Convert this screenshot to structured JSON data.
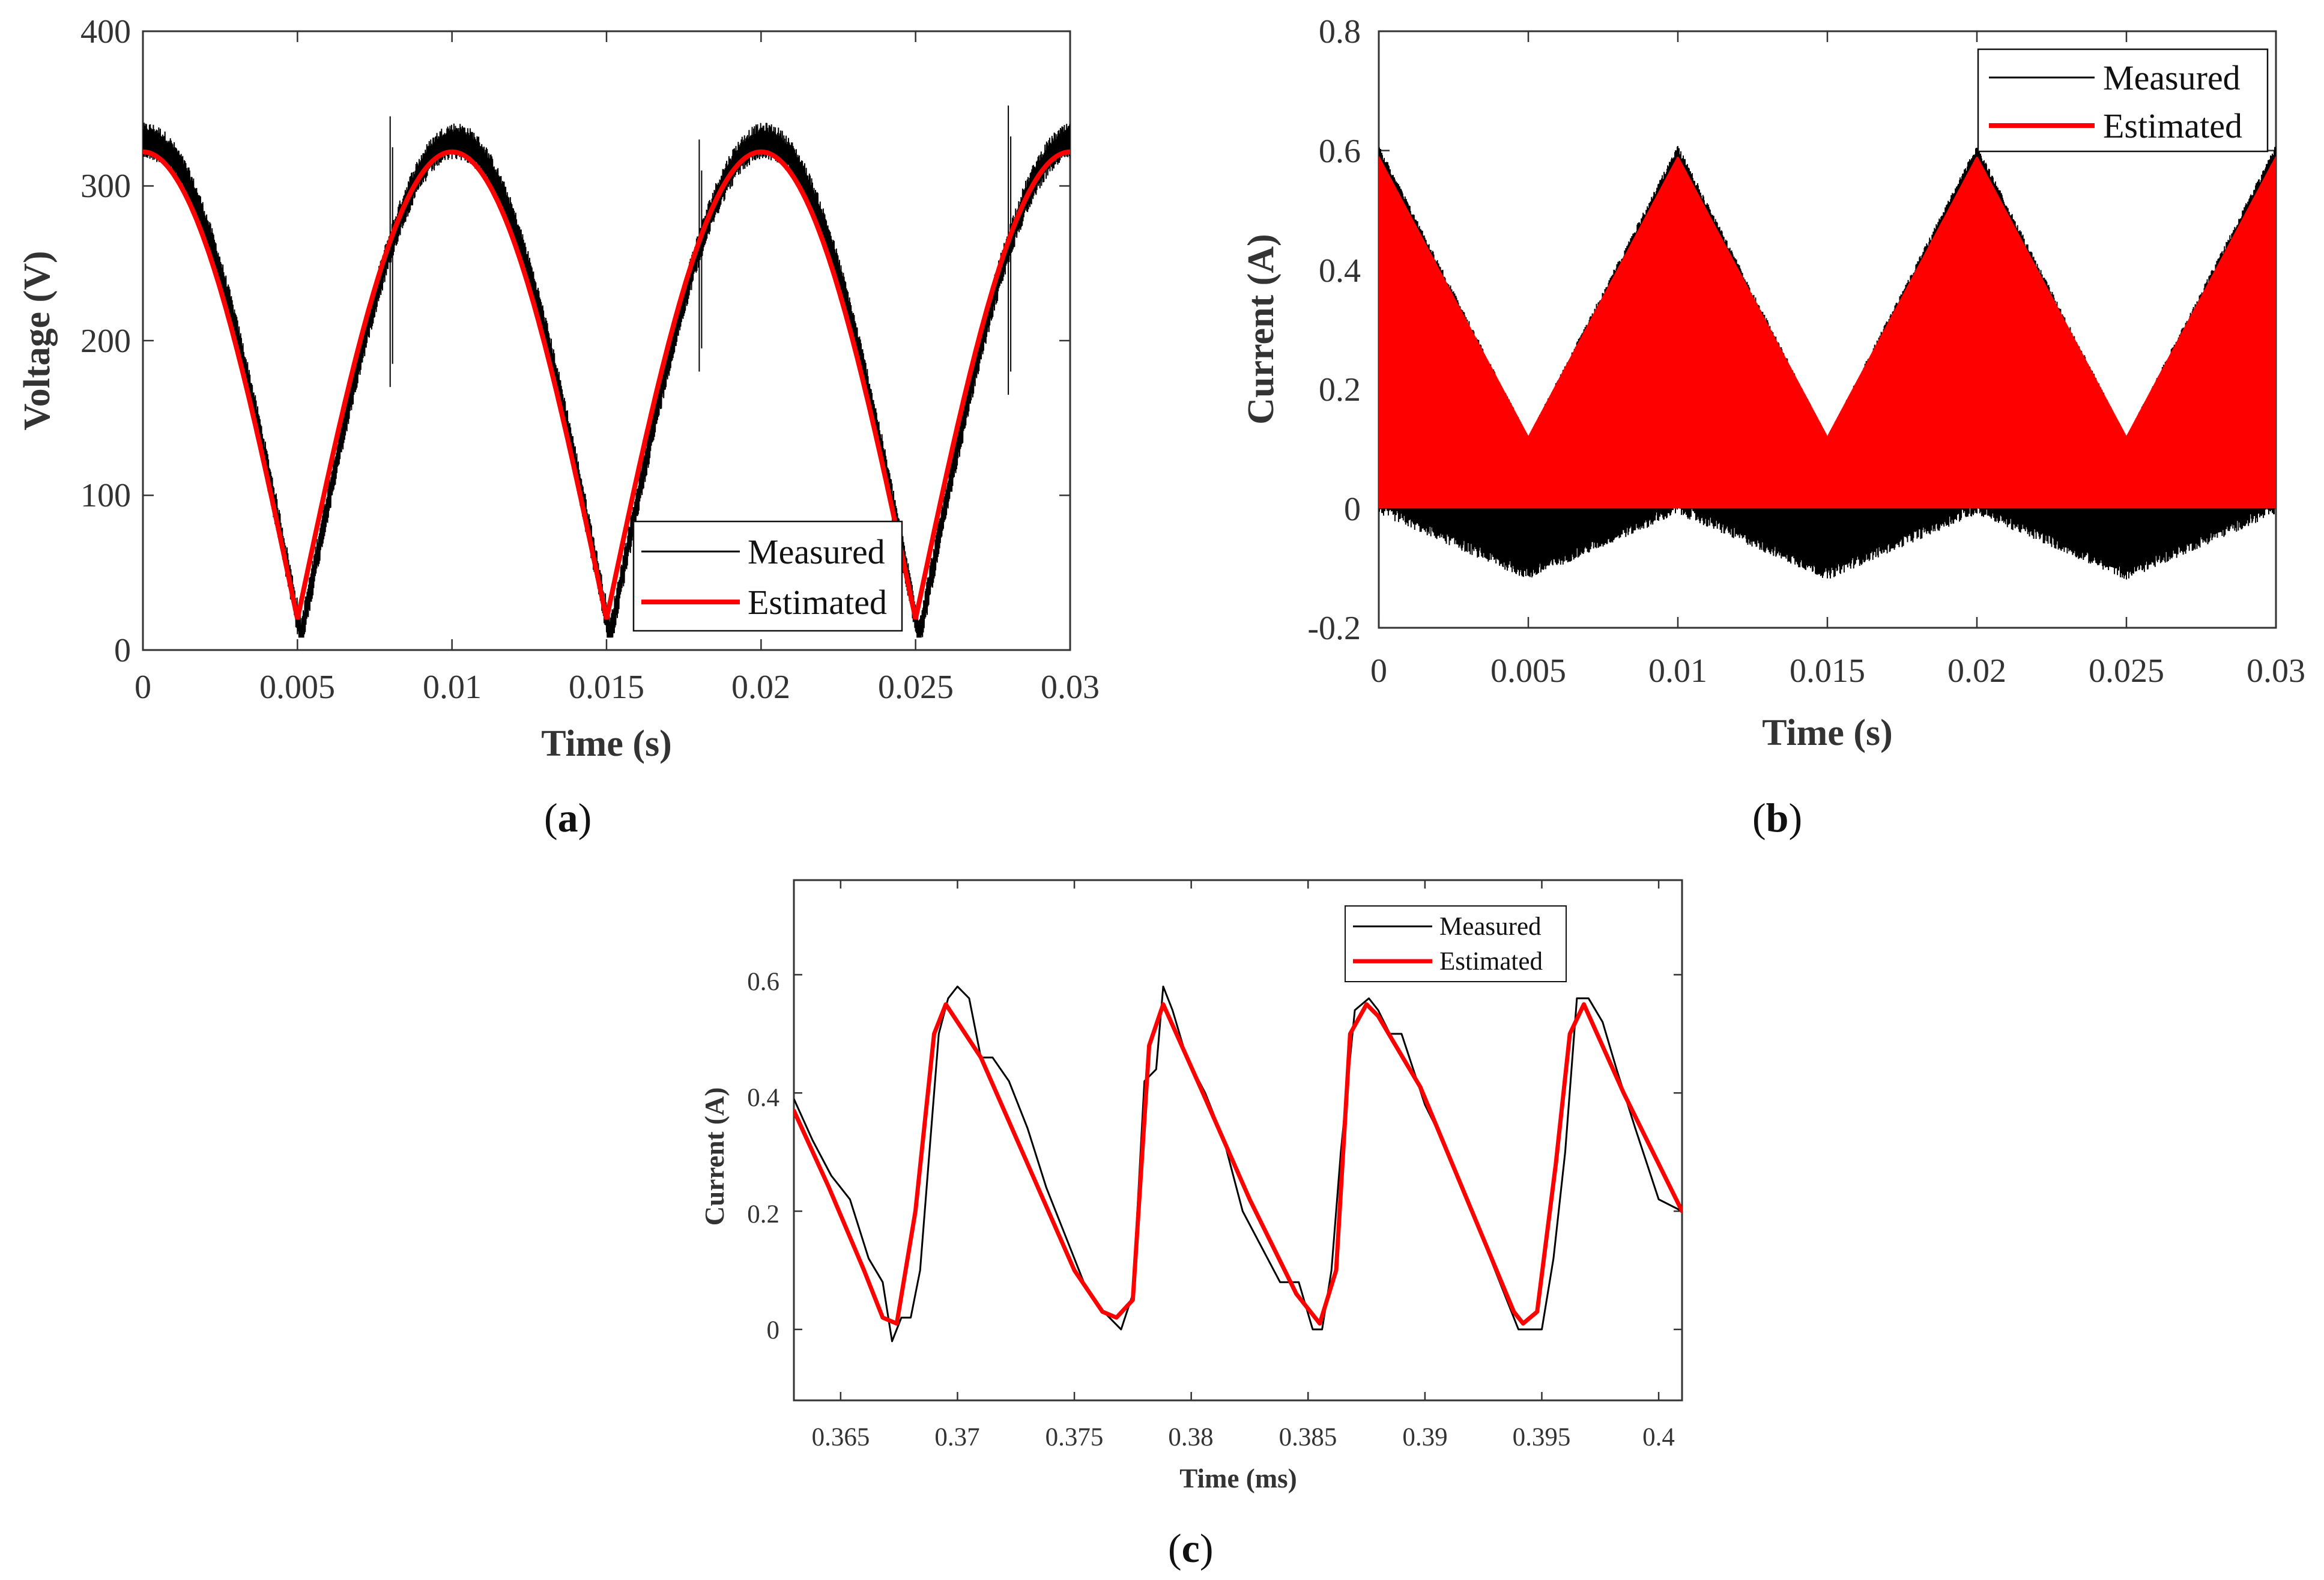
{
  "figure": {
    "colors": {
      "measured": "#000000",
      "estimated": "#ff0000",
      "axis": "#333333"
    }
  },
  "chart_data": [
    {
      "id": "a",
      "type": "line",
      "caption": "(a)",
      "caption_letter": "a",
      "xlabel": "Time (s)",
      "ylabel": "Voltage (V)",
      "xlim": [
        0,
        0.03
      ],
      "ylim": [
        0,
        400
      ],
      "xticks": [
        0,
        0.005,
        0.01,
        0.015,
        0.02,
        0.025,
        0.03
      ],
      "xtick_labels": [
        "0",
        "0.005",
        "0.01",
        "0.015",
        "0.02",
        "0.025",
        "0.03"
      ],
      "yticks": [
        0,
        100,
        200,
        300,
        400
      ],
      "ytick_labels": [
        "0",
        "100",
        "200",
        "300",
        "400"
      ],
      "legend_position": "bottom-right",
      "series": [
        {
          "name": "Measured",
          "description": "Rectified sinusoidal voltage, 100 Hz ripple, noisy band roughly +/-12 V with spikes near t=0.008, 0.018, 0.028 s",
          "model": {
            "kind": "abs_cos",
            "amplitude": 320,
            "offset": 5,
            "period": 0.01,
            "noise": 12,
            "spikes": [
              [
                0.008,
                345,
                170
              ],
              [
                0.018,
                330,
                180
              ],
              [
                0.028,
                352,
                165
              ]
            ]
          }
        },
        {
          "name": "Estimated",
          "description": "Smooth rectified sinusoid, peak about 322 V, minimum about 20 V at t=0.005, 0.015, 0.025 s",
          "model": {
            "kind": "abs_cos",
            "amplitude": 302,
            "offset": 20,
            "period": 0.01
          }
        }
      ]
    },
    {
      "id": "b",
      "type": "line",
      "caption": "(b)",
      "caption_letter": "b",
      "xlabel": "Time (s)",
      "ylabel": "Current (A)",
      "xlim": [
        0,
        0.03
      ],
      "ylim": [
        -0.2,
        0.8
      ],
      "xticks": [
        0,
        0.005,
        0.01,
        0.015,
        0.02,
        0.025,
        0.03
      ],
      "xtick_labels": [
        "0",
        "0.005",
        "0.01",
        "0.015",
        "0.02",
        "0.025",
        "0.03"
      ],
      "yticks": [
        -0.2,
        0,
        0.2,
        0.4,
        0.6,
        0.8
      ],
      "ytick_labels": [
        "-0.2",
        "0",
        "0.2",
        "0.4",
        "0.6",
        "0.8"
      ],
      "legend_position": "top-right",
      "series": [
        {
          "name": "Measured",
          "description": "High-frequency switching current; envelope upper 0.12-0.61 A (min at 0.005, 0.015, 0.025 s), lower -0.12 to -0.01 A",
          "envelope": {
            "upper_max": 0.61,
            "upper_min": 0.12,
            "lower_max": -0.01,
            "lower_min": -0.12
          }
        },
        {
          "name": "Estimated",
          "description": "Dense switching current filling band from 0 up to triangular envelope 0.12-0.59 A",
          "envelope": {
            "upper_max": 0.59,
            "upper_min": 0.12,
            "lower_max": 0.0,
            "lower_min": 0.0
          }
        }
      ]
    },
    {
      "id": "c",
      "type": "line",
      "caption": "(c)",
      "caption_letter": "c",
      "xlabel": "Time (ms)",
      "ylabel": "Current (A)",
      "xlim": [
        0.363,
        0.401
      ],
      "ylim": [
        -0.12,
        0.76
      ],
      "xticks": [
        0.365,
        0.37,
        0.375,
        0.38,
        0.385,
        0.39,
        0.395,
        0.4
      ],
      "xtick_labels": [
        "0.365",
        "0.37",
        "0.375",
        "0.38",
        "0.385",
        "0.39",
        "0.395",
        "0.4"
      ],
      "yticks": [
        0,
        0.2,
        0.4,
        0.6
      ],
      "ytick_labels": [
        "0",
        "0.2",
        "0.4",
        "0.6"
      ],
      "legend_position": "top-right",
      "series": [
        {
          "name": "Measured",
          "x": [
            0.363,
            0.3638,
            0.3646,
            0.3654,
            0.3662,
            0.3668,
            0.3672,
            0.3676,
            0.368,
            0.3684,
            0.3688,
            0.3692,
            0.3696,
            0.37,
            0.3705,
            0.371,
            0.3715,
            0.3722,
            0.373,
            0.3738,
            0.3746,
            0.3754,
            0.376,
            0.3765,
            0.377,
            0.3775,
            0.378,
            0.3785,
            0.3788,
            0.3792,
            0.3798,
            0.3806,
            0.3814,
            0.3822,
            0.383,
            0.3838,
            0.3846,
            0.3852,
            0.3856,
            0.386,
            0.3864,
            0.387,
            0.3876,
            0.388,
            0.3885,
            0.389,
            0.3895,
            0.39,
            0.391,
            0.392,
            0.393,
            0.394,
            0.3945,
            0.395,
            0.3955,
            0.396,
            0.3965,
            0.397,
            0.3976,
            0.3982,
            0.399,
            0.4,
            0.401
          ],
          "y": [
            0.39,
            0.32,
            0.26,
            0.22,
            0.12,
            0.08,
            -0.02,
            0.02,
            0.02,
            0.1,
            0.3,
            0.5,
            0.56,
            0.58,
            0.56,
            0.46,
            0.46,
            0.42,
            0.34,
            0.24,
            0.16,
            0.08,
            0.04,
            0.02,
            0.0,
            0.06,
            0.42,
            0.44,
            0.58,
            0.54,
            0.46,
            0.4,
            0.32,
            0.2,
            0.14,
            0.08,
            0.08,
            0.0,
            0.0,
            0.1,
            0.3,
            0.54,
            0.56,
            0.54,
            0.5,
            0.5,
            0.44,
            0.38,
            0.3,
            0.2,
            0.1,
            0.0,
            0.0,
            0.0,
            0.12,
            0.3,
            0.56,
            0.56,
            0.52,
            0.44,
            0.34,
            0.22,
            0.2
          ]
        },
        {
          "name": "Estimated",
          "x": [
            0.363,
            0.3645,
            0.366,
            0.3668,
            0.3674,
            0.3682,
            0.369,
            0.3695,
            0.371,
            0.373,
            0.375,
            0.3762,
            0.3768,
            0.3775,
            0.3782,
            0.3788,
            0.3805,
            0.3825,
            0.3845,
            0.3855,
            0.3862,
            0.3868,
            0.3875,
            0.388,
            0.3898,
            0.3918,
            0.3938,
            0.3942,
            0.3948,
            0.3956,
            0.3962,
            0.3968,
            0.3985,
            0.401
          ],
          "y": [
            0.37,
            0.24,
            0.1,
            0.02,
            0.01,
            0.2,
            0.5,
            0.55,
            0.46,
            0.28,
            0.1,
            0.03,
            0.02,
            0.05,
            0.48,
            0.55,
            0.4,
            0.22,
            0.06,
            0.01,
            0.1,
            0.5,
            0.55,
            0.53,
            0.41,
            0.22,
            0.03,
            0.01,
            0.03,
            0.28,
            0.5,
            0.55,
            0.4,
            0.2
          ]
        }
      ]
    }
  ]
}
